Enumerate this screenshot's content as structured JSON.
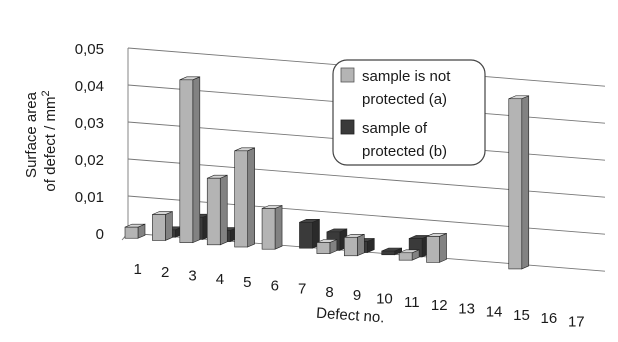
{
  "chart_data": {
    "type": "bar",
    "categories": [
      "1",
      "2",
      "3",
      "4",
      "5",
      "6",
      "7",
      "8",
      "9",
      "10",
      "11",
      "12",
      "13",
      "14",
      "15",
      "16",
      "17"
    ],
    "series": [
      {
        "name": "sample is not protected (a)",
        "color": "#b4b4b4",
        "values": [
          0.003,
          0.007,
          0.044,
          0.018,
          0.026,
          0.011,
          0,
          0.003,
          0.005,
          0,
          0.002,
          0.007,
          0,
          0,
          0.046,
          0,
          0
        ]
      },
      {
        "name": "sample of protected (b)",
        "color": "#3a3a3a",
        "values": [
          0,
          0.002,
          0.006,
          0.003,
          0,
          0,
          0.007,
          0.005,
          0.003,
          0.001,
          0.005,
          0,
          0,
          0,
          0,
          0,
          0
        ]
      }
    ],
    "ylim": [
      0,
      0.05
    ],
    "yticks": [
      "0",
      "0,01",
      "0,02",
      "0,03",
      "0,04",
      "0,05"
    ],
    "ylabel_line1": "Surface area",
    "ylabel_line2": "of defect / mm",
    "ylabel_sup": "2",
    "xlabel": "Defect no.",
    "legend": {
      "a_line1": "sample is not",
      "a_line2": "protected (a)",
      "b_line1": "sample of",
      "b_line2": "protected (b)"
    },
    "grid": true,
    "legend_position": "top-right"
  }
}
